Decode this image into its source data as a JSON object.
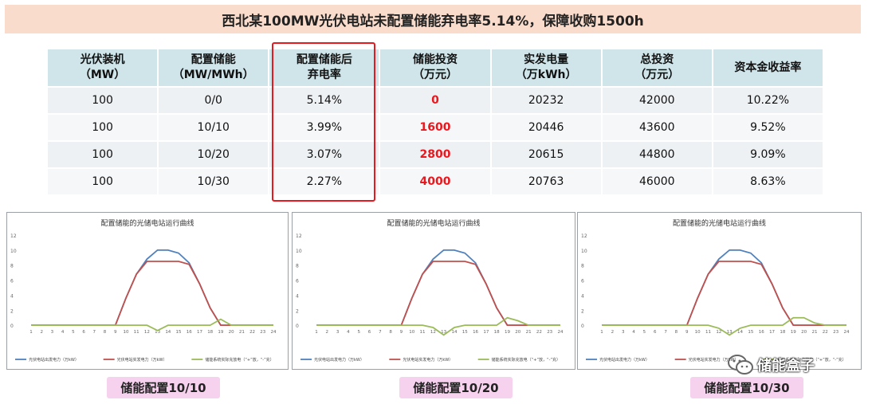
{
  "title": "西北某100MW光伏电站未配置储能弃电率5.14%，保障收购1500h",
  "table": {
    "headers": [
      [
        "光伏装机",
        "（MW）"
      ],
      [
        "配置储能",
        "（MW/MWh）"
      ],
      [
        "配置储能后",
        "弃电率"
      ],
      [
        "储能投资",
        "（万元）"
      ],
      [
        "实发电量",
        "（万kWh）"
      ],
      [
        "总投资",
        "（万元）"
      ],
      [
        "资本金收益率",
        ""
      ]
    ],
    "rows": [
      [
        "100",
        "0/0",
        "5.14%",
        "0",
        "20232",
        "42000",
        "10.22%"
      ],
      [
        "100",
        "10/10",
        "3.99%",
        "1600",
        "20446",
        "43600",
        "9.52%"
      ],
      [
        "100",
        "10/20",
        "3.07%",
        "2800",
        "20615",
        "44800",
        "9.09%"
      ],
      [
        "100",
        "10/30",
        "2.27%",
        "4000",
        "20763",
        "46000",
        "8.63%"
      ]
    ]
  },
  "colors": {
    "pv_output": "#4f81bd",
    "pv_actual": "#c0504d",
    "storage": "#9bbb59",
    "highlight": "#e8181f"
  },
  "chart_data": [
    {
      "type": "line",
      "title": "配置储能的光储电站运行曲线",
      "x": [
        1,
        2,
        3,
        4,
        5,
        6,
        7,
        8,
        9,
        10,
        11,
        12,
        13,
        14,
        15,
        16,
        17,
        18,
        19,
        20,
        21,
        22,
        23,
        24
      ],
      "ylim": [
        -2,
        12
      ],
      "yticks": [
        0,
        2,
        4,
        6,
        8,
        10,
        12
      ],
      "series": [
        {
          "name": "光伏电站出发电力（万kW）",
          "color": "#4f81bd",
          "values": [
            0,
            0,
            0,
            0,
            0,
            0,
            0,
            0,
            0,
            3.6,
            6.8,
            8.8,
            10,
            10,
            9.6,
            8.3,
            5.5,
            2.3,
            0,
            0,
            0,
            0,
            0,
            0
          ]
        },
        {
          "name": "光伏电站实发电力（万kW）",
          "color": "#c0504d",
          "values": [
            0,
            0,
            0,
            0,
            0,
            0,
            0,
            0,
            0,
            3.6,
            6.8,
            8.5,
            8.5,
            8.5,
            8.5,
            8.1,
            5.5,
            2.3,
            0,
            0,
            0,
            0,
            0,
            0
          ]
        },
        {
          "name": "储能系统实际充放电（“+”放，“-”充）",
          "color": "#9bbb59",
          "values": [
            0,
            0,
            0,
            0,
            0,
            0,
            0,
            0,
            0,
            0,
            0,
            0,
            -0.7,
            0,
            0,
            0,
            0,
            0,
            0.8,
            0,
            0,
            0,
            0,
            0
          ]
        }
      ],
      "caption": "储能配置10/10"
    },
    {
      "type": "line",
      "title": "配置储能的光储电站运行曲线",
      "x": [
        1,
        2,
        3,
        4,
        5,
        6,
        7,
        8,
        9,
        10,
        11,
        12,
        13,
        14,
        15,
        16,
        17,
        18,
        19,
        20,
        21,
        22,
        23,
        24
      ],
      "ylim": [
        -2,
        12
      ],
      "yticks": [
        0,
        2,
        4,
        6,
        8,
        10,
        12
      ],
      "series": [
        {
          "name": "光伏电站出发电力（万kW）",
          "color": "#4f81bd",
          "values": [
            0,
            0,
            0,
            0,
            0,
            0,
            0,
            0,
            0,
            3.6,
            6.8,
            8.8,
            10,
            10,
            9.6,
            8.3,
            5.5,
            2.3,
            0,
            0,
            0,
            0,
            0,
            0
          ]
        },
        {
          "name": "光伏电站实发电力（万kW）",
          "color": "#c0504d",
          "values": [
            0,
            0,
            0,
            0,
            0,
            0,
            0,
            0,
            0,
            3.6,
            6.8,
            8.5,
            8.5,
            8.5,
            8.5,
            8.1,
            5.5,
            2.3,
            0,
            0,
            0,
            0,
            0,
            0
          ]
        },
        {
          "name": "储能系统实际充放电（“+”放，“-”充）",
          "color": "#9bbb59",
          "values": [
            0,
            0,
            0,
            0,
            0,
            0,
            0,
            0,
            0,
            0,
            0,
            -0.3,
            -1.3,
            -0.3,
            0,
            0,
            0,
            0,
            1,
            0.6,
            0,
            0,
            0,
            0
          ]
        }
      ],
      "caption": "储能配置10/20"
    },
    {
      "type": "line",
      "title": "配置储能的光储电站运行曲线",
      "x": [
        1,
        2,
        3,
        4,
        5,
        6,
        7,
        8,
        9,
        10,
        11,
        12,
        13,
        14,
        15,
        16,
        17,
        18,
        19,
        20,
        21,
        22,
        23,
        24
      ],
      "ylim": [
        -2,
        12
      ],
      "yticks": [
        0,
        2,
        4,
        6,
        8,
        10,
        12
      ],
      "series": [
        {
          "name": "光伏电站出发电力（万kW）",
          "color": "#4f81bd",
          "values": [
            0,
            0,
            0,
            0,
            0,
            0,
            0,
            0,
            0,
            3.6,
            6.8,
            8.8,
            10,
            10,
            9.6,
            8.3,
            5.5,
            2.3,
            0,
            0,
            0,
            0,
            0,
            0
          ]
        },
        {
          "name": "光伏电站实发电力（万kW）",
          "color": "#c0504d",
          "values": [
            0,
            0,
            0,
            0,
            0,
            0,
            0,
            0,
            0,
            3.6,
            6.8,
            8.5,
            8.5,
            8.5,
            8.5,
            8.1,
            5.5,
            2.3,
            0,
            0,
            0,
            0,
            0,
            0
          ]
        },
        {
          "name": "储能系统实际充放电（“+”放，“-”充）",
          "color": "#9bbb59",
          "values": [
            0,
            0,
            0,
            0,
            0,
            0,
            0,
            0,
            0,
            0,
            0,
            -0.4,
            -1.3,
            -0.4,
            0,
            0,
            0,
            0,
            1,
            1,
            0.3,
            0,
            0,
            0
          ]
        }
      ],
      "caption": "储能配置10/30"
    }
  ],
  "watermark": {
    "text": "储能盒子",
    "icon": "wechat-icon"
  }
}
